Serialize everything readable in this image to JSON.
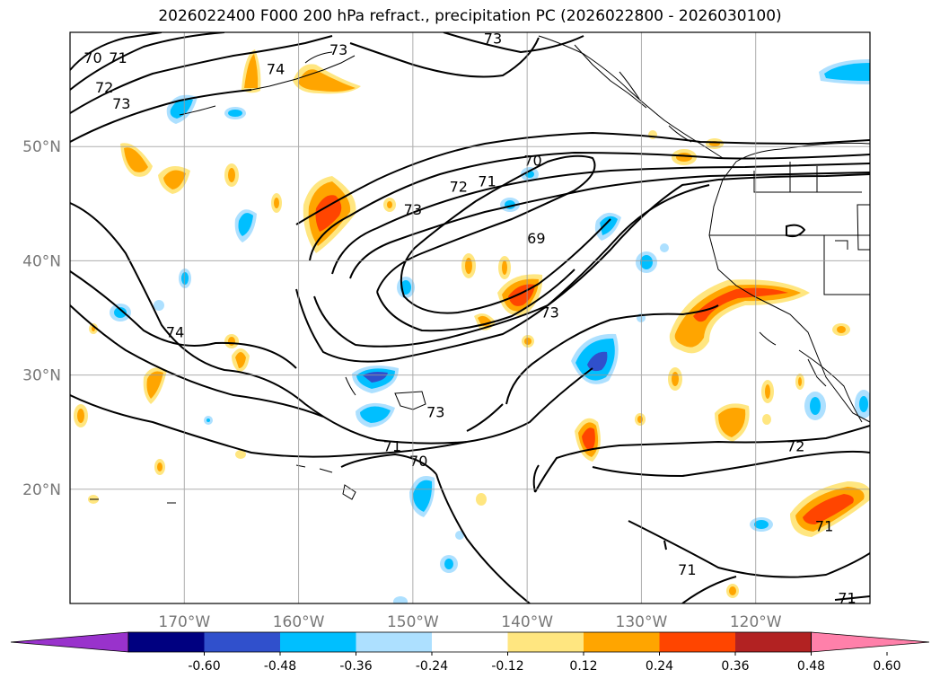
{
  "title": "2026022400 F000 200 hPa refract., precipitation PC (2026022800 - 2026030100)",
  "map": {
    "lat_range": [
      10,
      60
    ],
    "lon_range": [
      -180,
      -110
    ],
    "lat_ticks": [
      {
        "value": 20,
        "label": "20°N"
      },
      {
        "value": 30,
        "label": "30°N"
      },
      {
        "value": 40,
        "label": "40°N"
      },
      {
        "value": 50,
        "label": "50°N"
      }
    ],
    "lon_ticks": [
      {
        "value": -170,
        "label": "170°W"
      },
      {
        "value": -160,
        "label": "160°W"
      },
      {
        "value": -150,
        "label": "150°W"
      },
      {
        "value": -140,
        "label": "140°W"
      },
      {
        "value": -130,
        "label": "130°W"
      },
      {
        "value": -120,
        "label": "120°W"
      }
    ],
    "grid": true,
    "contour_labels": [
      {
        "text": "70",
        "lon": -178.0,
        "lat": 57.8
      },
      {
        "text": "71",
        "lon": -175.8,
        "lat": 57.8
      },
      {
        "text": "72",
        "lon": -177.0,
        "lat": 55.2
      },
      {
        "text": "73",
        "lon": -175.5,
        "lat": 53.8
      },
      {
        "text": "74",
        "lon": -162.0,
        "lat": 56.8
      },
      {
        "text": "73",
        "lon": -156.5,
        "lat": 58.5
      },
      {
        "text": "73",
        "lon": -143.0,
        "lat": 59.5
      },
      {
        "text": "70",
        "lon": -139.5,
        "lat": 48.8
      },
      {
        "text": "71",
        "lon": -143.5,
        "lat": 47.0
      },
      {
        "text": "72",
        "lon": -146.0,
        "lat": 46.5
      },
      {
        "text": "73",
        "lon": -150.0,
        "lat": 44.5
      },
      {
        "text": "69",
        "lon": -139.2,
        "lat": 42.0
      },
      {
        "text": "73",
        "lon": -138.0,
        "lat": 35.5
      },
      {
        "text": "74",
        "lon": -170.8,
        "lat": 33.8
      },
      {
        "text": "73",
        "lon": -148.0,
        "lat": 26.8
      },
      {
        "text": "71",
        "lon": -151.8,
        "lat": 23.8
      },
      {
        "text": "70",
        "lon": -149.5,
        "lat": 22.5
      },
      {
        "text": "72",
        "lon": -116.5,
        "lat": 23.8
      },
      {
        "text": "71",
        "lon": -114.0,
        "lat": 16.8
      },
      {
        "text": "71",
        "lon": -126.0,
        "lat": 13.0
      },
      {
        "text": "71",
        "lon": -112.0,
        "lat": 10.5
      }
    ]
  },
  "colorbar": {
    "colors": [
      "#9932CC",
      "#000080",
      "#3050CC",
      "#00BFFF",
      "#ADE0FF",
      "#FFFFFF",
      "#FFE680",
      "#FFA500",
      "#FF4500",
      "#B22222",
      "#FF80AA"
    ],
    "ticks": [
      "-0.60",
      "-0.48",
      "-0.36",
      "-0.24",
      "-0.12",
      "0.12",
      "0.24",
      "0.36",
      "0.48",
      "0.60"
    ]
  }
}
